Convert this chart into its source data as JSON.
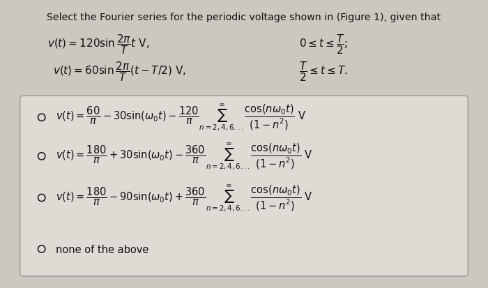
{
  "bg_color": "#ccc8c0",
  "box_color": "#dedad4",
  "title": "Select the Fourier series for the periodic voltage shown in (Figure 1), given that",
  "title_fontsize": 10.2,
  "given_line1_left": "$v(t) = 120\\sin\\dfrac{2\\pi}{T}t\\ \\mathrm{V},$",
  "given_line1_right": "$0 \\leq t \\leq \\dfrac{T}{2};$",
  "given_line2_left": "$v(t) = 60\\sin\\dfrac{2\\pi}{T}(t-T/2)\\ \\mathrm{V},$",
  "given_line2_right": "$\\dfrac{T}{2} \\leq t \\leq T.$",
  "option1": "$v(t) = \\dfrac{60}{\\pi} - 30\\sin(\\omega_0 t) - \\dfrac{120}{\\pi}\\sum_{n=2,4,6...}^{\\infty}\\dfrac{\\cos(n\\omega_0 t)}{(1-n^2)}\\ \\mathrm{V}$",
  "option2": "$v(t) = \\dfrac{180}{\\pi} + 30\\sin(\\omega_0 t) - \\dfrac{360}{\\pi}\\sum_{n=2,4,6...}^{\\infty}\\dfrac{\\cos(n\\omega_0 t)}{(1-n^2)}\\ \\mathrm{V}$",
  "option3": "$v(t) = \\dfrac{180}{\\pi} - 90\\sin(\\omega_0 t) + \\dfrac{360}{\\pi}\\sum_{n=2,4,6...}^{\\infty}\\dfrac{\\cos(n\\omega_0 t)}{(1-n^2)}\\ \\mathrm{V}$",
  "option4": "none of the above",
  "option_fontsize": 10.5,
  "text_color": "#111111",
  "edge_color": "#999999"
}
